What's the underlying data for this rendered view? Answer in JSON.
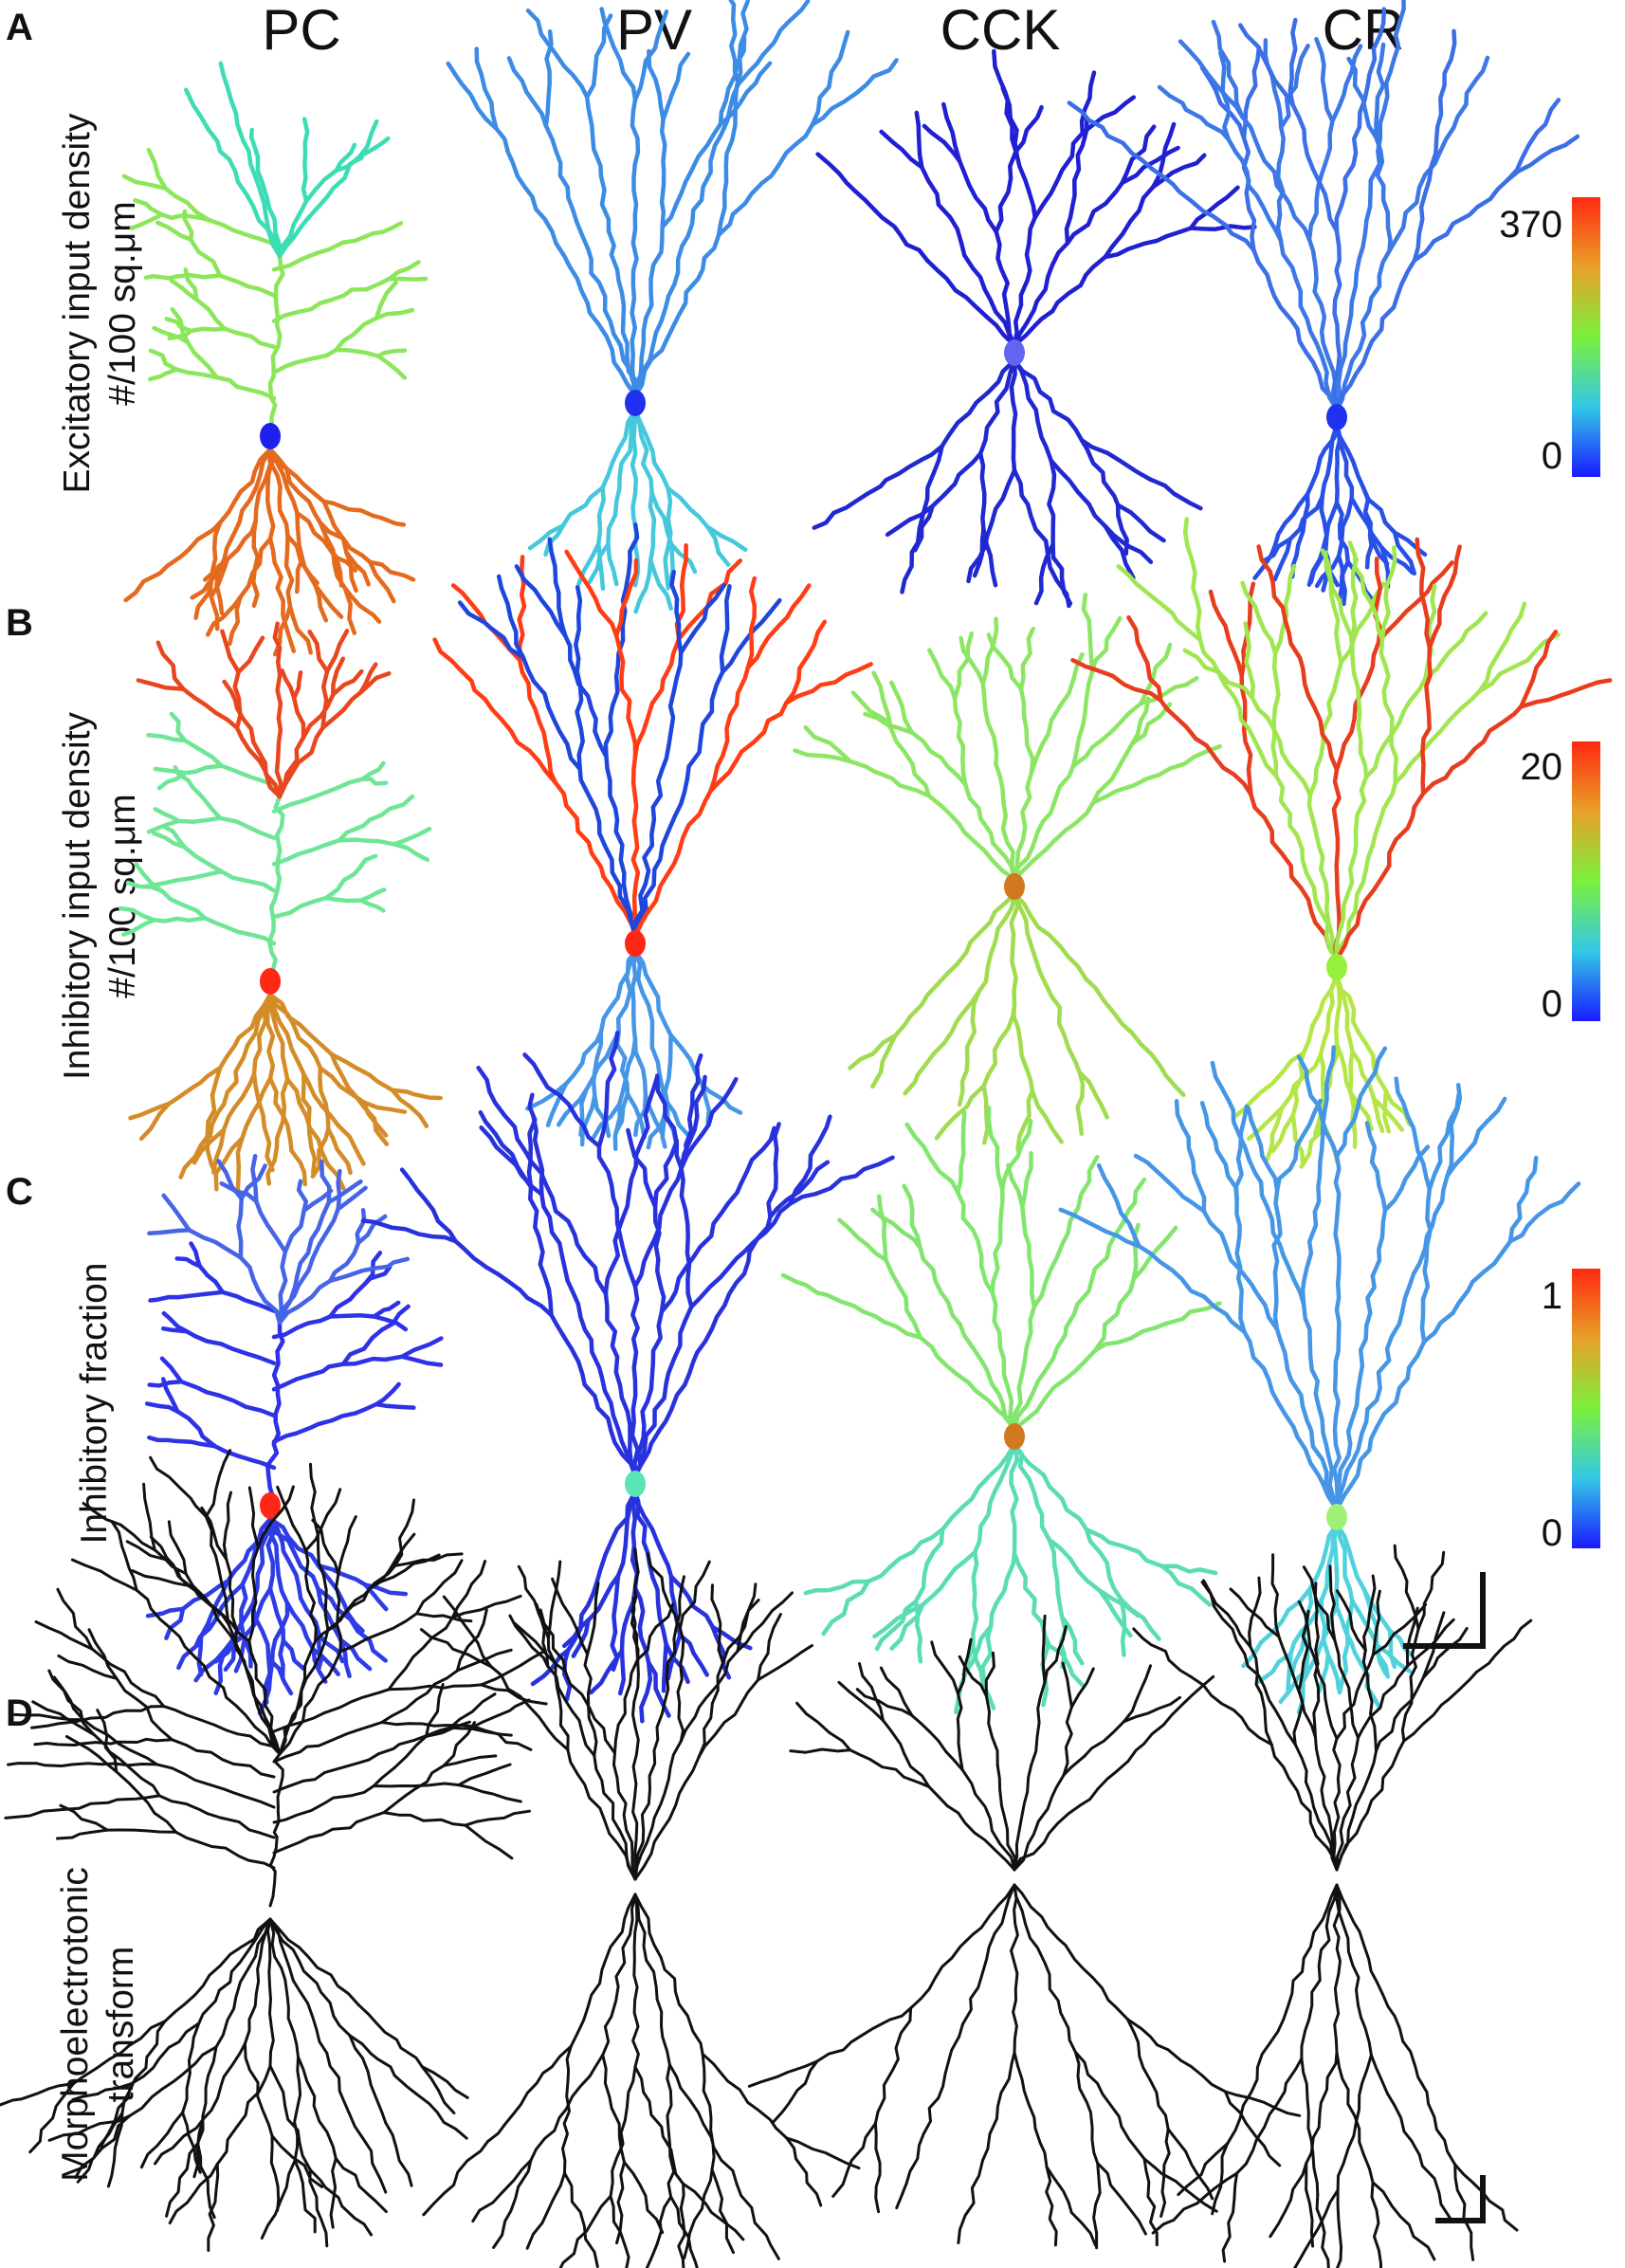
{
  "figure": {
    "column_headers": [
      "PC",
      "PV",
      "CCK",
      "CR"
    ],
    "panels": [
      {
        "letter": "A",
        "label_lines": [
          "Excitatory input density",
          "#/100 sq.μm"
        ],
        "colorbar": {
          "max_label": "370",
          "min_label": "0"
        }
      },
      {
        "letter": "B",
        "label_lines": [
          "Inhibitory input density",
          "#/100 sq.μm"
        ],
        "colorbar": {
          "max_label": "20",
          "min_label": "0"
        }
      },
      {
        "letter": "C",
        "label_lines": [
          "Inhibitory fraction"
        ],
        "colorbar": {
          "max_label": "1",
          "min_label": "0"
        }
      },
      {
        "letter": "D",
        "label_lines": [
          "Morphoelectrotonic",
          "transform"
        ],
        "colorbar": null
      }
    ],
    "colormap": [
      "#1a1aff",
      "#33c8e6",
      "#7af03c",
      "#e8a028",
      "#ff2a10"
    ],
    "cells": {
      "A": [
        {
          "type": "PC",
          "soma_color": "#2020ee",
          "apical_color": "#8ce65a",
          "tuft_color": "#3cdcb4",
          "basal_color": "#e46a1e"
        },
        {
          "type": "PV",
          "soma_color": "#2030ee",
          "apical_color": "#3c8ce6",
          "tuft_color": "#3c8ce6",
          "basal_color": "#46c8dc"
        },
        {
          "type": "CCK",
          "soma_color": "#6464f0",
          "apical_color": "#2020d2",
          "tuft_color": "#2020d2",
          "basal_color": "#2028d2"
        },
        {
          "type": "CR",
          "soma_color": "#1e32f0",
          "apical_color": "#3c78e6",
          "tuft_color": "#3c6ee6",
          "basal_color": "#2850e6"
        }
      ],
      "B": [
        {
          "type": "PC",
          "soma_color": "#ff2814",
          "apical_color": "#6ee696",
          "tuft_color": "#e8461e",
          "basal_color": "#d48c28"
        },
        {
          "type": "PV",
          "soma_color": "#ff2814",
          "apical_color": "#1e46dc",
          "tuft_color": "#ff3c14",
          "basal_color": "#4696e6"
        },
        {
          "type": "CCK",
          "soma_color": "#d2781e",
          "apical_color": "#8ce664",
          "tuft_color": "#8ce664",
          "basal_color": "#a0dc50"
        },
        {
          "type": "CR",
          "soma_color": "#96f03c",
          "apical_color": "#a0e650",
          "tuft_color": "#e83c1e",
          "basal_color": "#b4e646"
        }
      ],
      "C": [
        {
          "type": "PC",
          "soma_color": "#ff2814",
          "apical_color": "#2d32e6",
          "tuft_color": "#4664e6",
          "basal_color": "#2d3ce6"
        },
        {
          "type": "PV",
          "soma_color": "#5ae6b4",
          "apical_color": "#2832dc",
          "tuft_color": "#2832dc",
          "basal_color": "#2832dc"
        },
        {
          "type": "CCK",
          "soma_color": "#d2781e",
          "apical_color": "#82e66e",
          "tuft_color": "#82e66e",
          "basal_color": "#5adcb4"
        },
        {
          "type": "CR",
          "soma_color": "#a0f078",
          "apical_color": "#4696e6",
          "tuft_color": "#4696e6",
          "basal_color": "#50d2dc"
        }
      ],
      "D": [
        {
          "type": "PC",
          "soma_color": "#111111",
          "apical_color": "#111111",
          "tuft_color": "#111111",
          "basal_color": "#111111"
        },
        {
          "type": "PV",
          "soma_color": "#111111",
          "apical_color": "#111111",
          "tuft_color": "#111111",
          "basal_color": "#111111"
        },
        {
          "type": "CCK",
          "soma_color": "#111111",
          "apical_color": "#111111",
          "tuft_color": "#111111",
          "basal_color": "#111111"
        },
        {
          "type": "CR",
          "soma_color": "#111111",
          "apical_color": "#111111",
          "tuft_color": "#111111",
          "basal_color": "#111111"
        }
      ]
    },
    "scale_bars": 2
  }
}
